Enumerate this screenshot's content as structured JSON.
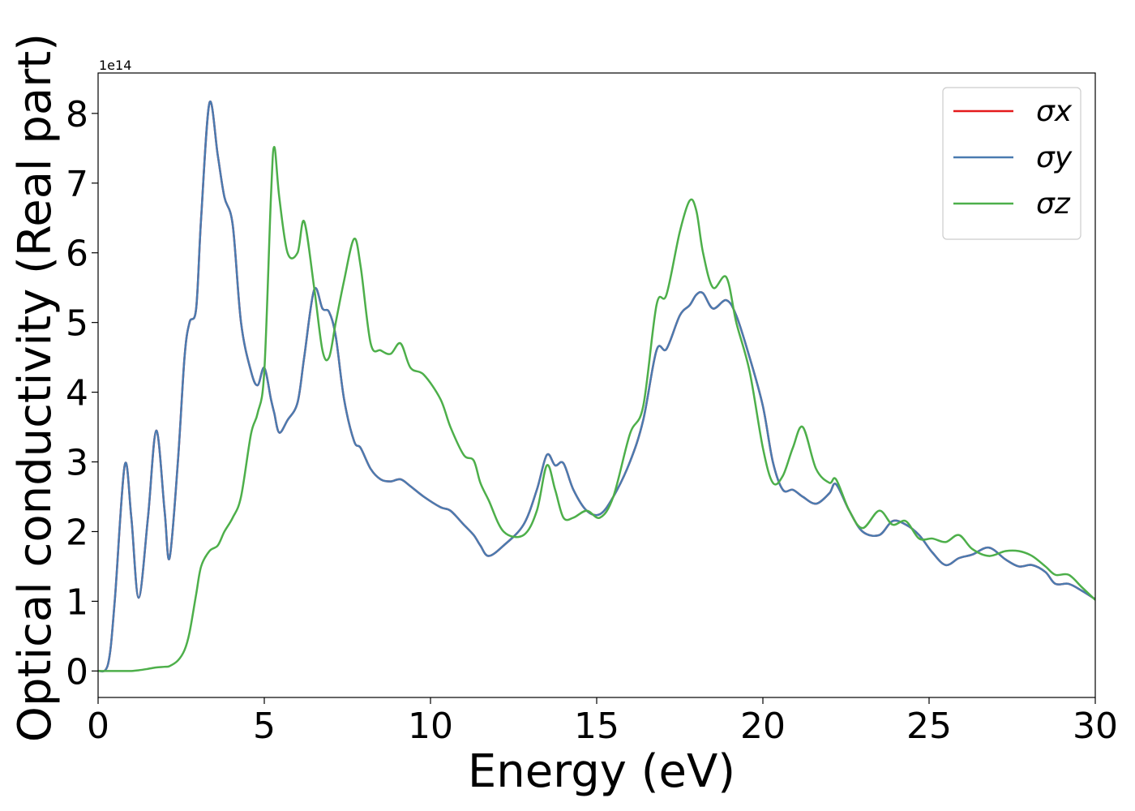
{
  "chart_data": {
    "type": "line",
    "x_label": "Energy (eV)",
    "y_label": "Optical conductivity (Real part)",
    "y_offset_label": "1e14",
    "xlim": [
      0,
      30
    ],
    "ylim": [
      -0.38,
      8.58
    ],
    "xticks": [
      0,
      5,
      10,
      15,
      20,
      25,
      30
    ],
    "yticks": [
      0,
      1,
      2,
      3,
      4,
      5,
      6,
      7,
      8
    ],
    "grid": false,
    "legend": "upper right",
    "x": [
      0,
      0.3,
      0.5,
      0.8,
      1.0,
      1.22,
      1.5,
      1.75,
      2.0,
      2.15,
      2.4,
      2.6,
      2.75,
      2.95,
      3.1,
      3.35,
      3.6,
      3.8,
      4.05,
      4.3,
      4.6,
      4.8,
      5.0,
      5.2,
      5.3,
      5.45,
      5.7,
      6.0,
      6.2,
      6.5,
      6.75,
      6.95,
      7.15,
      7.4,
      7.7,
      7.9,
      8.2,
      8.5,
      8.8,
      9.1,
      9.4,
      9.8,
      10.3,
      10.6,
      11.0,
      11.3,
      11.5,
      11.75,
      12.2,
      12.8,
      13.2,
      13.5,
      13.75,
      14.0,
      14.3,
      14.7,
      15.1,
      15.5,
      16.0,
      16.4,
      16.8,
      17.1,
      17.5,
      17.8,
      18.0,
      18.2,
      18.5,
      18.9,
      19.2,
      19.6,
      20.0,
      20.3,
      20.6,
      20.9,
      21.2,
      21.6,
      22.0,
      22.2,
      22.6,
      23.0,
      23.5,
      23.9,
      24.3,
      24.7,
      25.1,
      25.5,
      25.9,
      26.3,
      26.8,
      27.3,
      27.7,
      28.1,
      28.5,
      28.8,
      29.2,
      29.6,
      30.0
    ],
    "series": [
      {
        "name": "σx",
        "color": "#e41a1c",
        "values": [
          0,
          0.1,
          1.0,
          2.95,
          2.2,
          1.05,
          2.2,
          3.45,
          2.3,
          1.62,
          3.0,
          4.5,
          5.0,
          5.2,
          6.5,
          8.15,
          7.4,
          6.8,
          6.4,
          5.0,
          4.3,
          4.1,
          4.35,
          3.9,
          3.7,
          3.42,
          3.6,
          3.85,
          4.5,
          5.47,
          5.2,
          5.15,
          4.8,
          3.9,
          3.3,
          3.2,
          2.9,
          2.75,
          2.72,
          2.75,
          2.65,
          2.5,
          2.35,
          2.3,
          2.1,
          1.95,
          1.8,
          1.65,
          1.8,
          2.1,
          2.6,
          3.1,
          2.95,
          2.98,
          2.6,
          2.3,
          2.25,
          2.5,
          3.0,
          3.6,
          4.6,
          4.62,
          5.1,
          5.25,
          5.4,
          5.42,
          5.2,
          5.32,
          5.1,
          4.5,
          3.8,
          3.0,
          2.6,
          2.6,
          2.5,
          2.4,
          2.55,
          2.68,
          2.3,
          2.0,
          1.95,
          2.15,
          2.1,
          1.95,
          1.7,
          1.52,
          1.62,
          1.67,
          1.77,
          1.6,
          1.5,
          1.52,
          1.42,
          1.25,
          1.25,
          1.15,
          1.03
        ]
      },
      {
        "name": "σy",
        "color": "#4a7bb0",
        "values": [
          0,
          0.1,
          1.0,
          2.95,
          2.2,
          1.05,
          2.2,
          3.45,
          2.3,
          1.62,
          3.0,
          4.5,
          5.0,
          5.2,
          6.5,
          8.15,
          7.4,
          6.8,
          6.4,
          5.0,
          4.3,
          4.1,
          4.35,
          3.9,
          3.7,
          3.42,
          3.6,
          3.85,
          4.5,
          5.47,
          5.2,
          5.15,
          4.8,
          3.9,
          3.3,
          3.2,
          2.9,
          2.75,
          2.72,
          2.75,
          2.65,
          2.5,
          2.35,
          2.3,
          2.1,
          1.95,
          1.8,
          1.65,
          1.8,
          2.1,
          2.6,
          3.1,
          2.95,
          2.98,
          2.6,
          2.3,
          2.25,
          2.5,
          3.0,
          3.6,
          4.6,
          4.62,
          5.1,
          5.25,
          5.4,
          5.42,
          5.2,
          5.32,
          5.1,
          4.5,
          3.8,
          3.0,
          2.6,
          2.6,
          2.5,
          2.4,
          2.55,
          2.68,
          2.3,
          2.0,
          1.95,
          2.15,
          2.1,
          1.95,
          1.7,
          1.52,
          1.62,
          1.67,
          1.77,
          1.6,
          1.5,
          1.52,
          1.42,
          1.25,
          1.25,
          1.15,
          1.03
        ]
      },
      {
        "name": "σz",
        "color": "#4daf4a",
        "values": [
          0,
          0,
          0,
          0,
          0,
          0.01,
          0.03,
          0.05,
          0.06,
          0.07,
          0.15,
          0.3,
          0.55,
          1.1,
          1.5,
          1.72,
          1.8,
          2.0,
          2.2,
          2.5,
          3.4,
          3.7,
          4.3,
          6.8,
          7.52,
          6.8,
          6.0,
          6.0,
          6.45,
          5.5,
          4.6,
          4.5,
          5.0,
          5.6,
          6.2,
          5.8,
          4.7,
          4.6,
          4.55,
          4.7,
          4.35,
          4.25,
          3.9,
          3.5,
          3.1,
          3.02,
          2.7,
          2.45,
          2.0,
          1.95,
          2.3,
          2.95,
          2.6,
          2.2,
          2.2,
          2.3,
          2.2,
          2.5,
          3.4,
          3.8,
          5.25,
          5.4,
          6.3,
          6.75,
          6.6,
          6.0,
          5.5,
          5.65,
          5.0,
          4.3,
          3.2,
          2.7,
          2.8,
          3.2,
          3.5,
          2.9,
          2.7,
          2.75,
          2.3,
          2.05,
          2.3,
          2.1,
          2.15,
          1.9,
          1.9,
          1.85,
          1.95,
          1.75,
          1.65,
          1.72,
          1.72,
          1.65,
          1.5,
          1.38,
          1.38,
          1.2,
          1.02
        ]
      }
    ]
  }
}
